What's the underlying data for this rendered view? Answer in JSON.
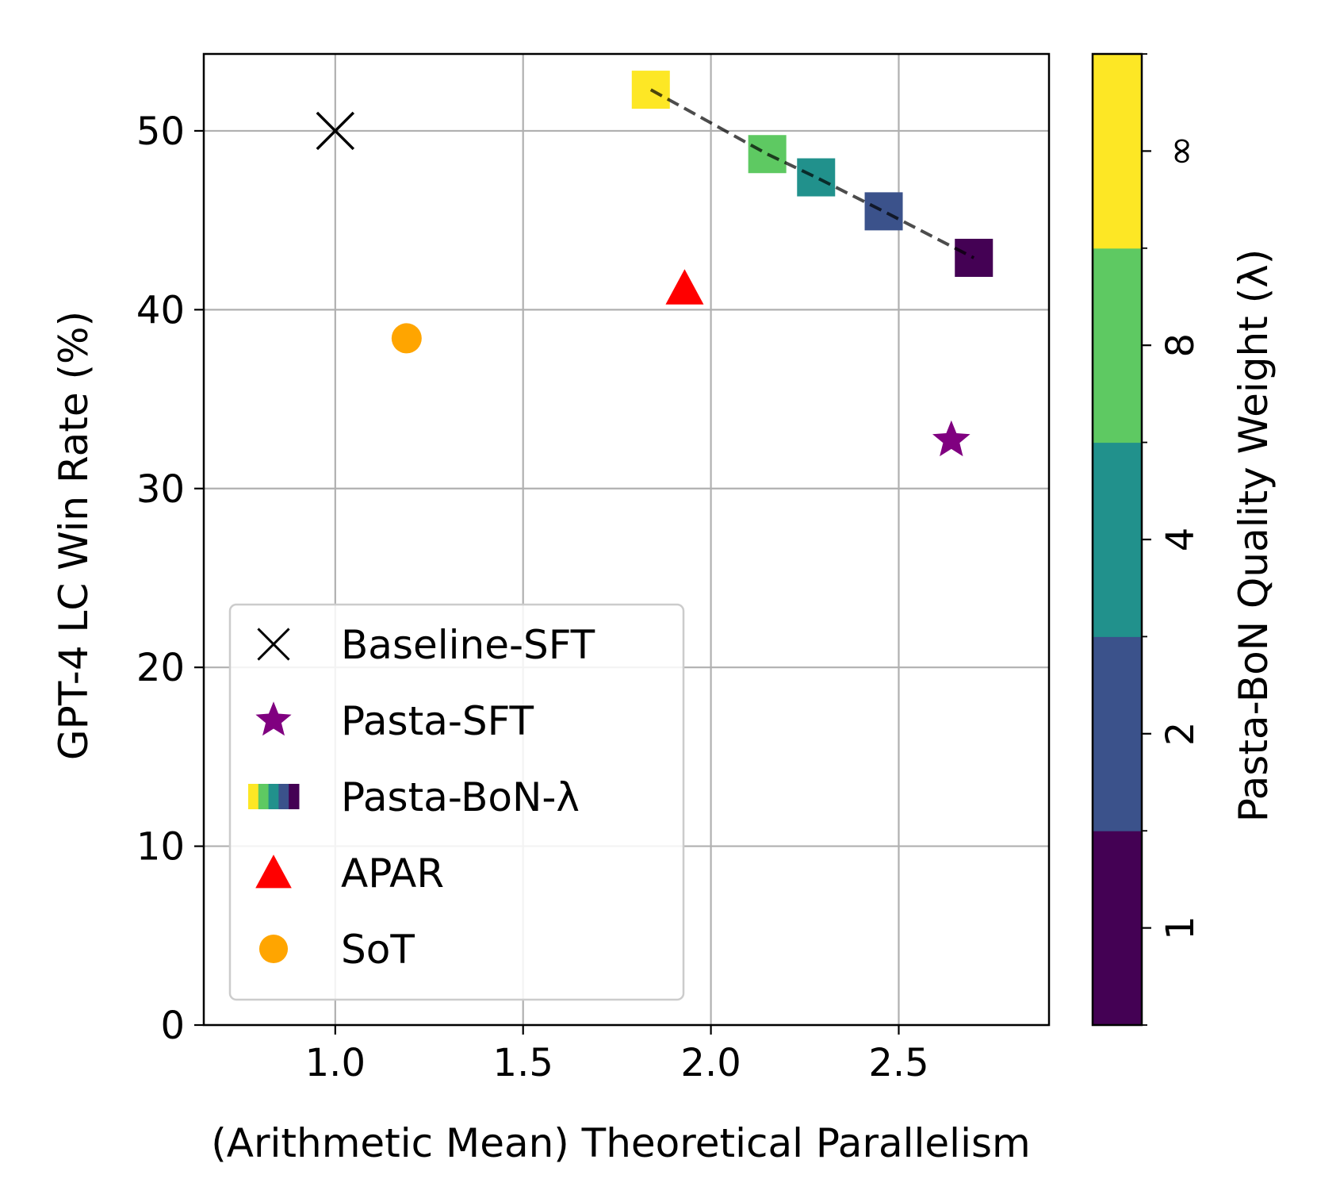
{
  "chart_data": {
    "type": "scatter",
    "xlabel": "(Arithmetic Mean) Theoretical Parallelism",
    "ylabel": "GPT-4 LC Win Rate (%)",
    "xlim": [
      0.65,
      2.9
    ],
    "ylim": [
      0,
      54.3
    ],
    "x_ticks": [
      1.0,
      1.5,
      2.0,
      2.5
    ],
    "x_tick_labels": [
      "1.0",
      "1.5",
      "2.0",
      "2.5"
    ],
    "y_ticks": [
      0,
      10,
      20,
      30,
      40,
      50
    ],
    "y_tick_labels": [
      "0",
      "10",
      "20",
      "30",
      "40",
      "50"
    ],
    "grid": true,
    "legend_position": "lower-left",
    "series": [
      {
        "name": "Baseline-SFT",
        "marker": "x",
        "color": "#000000",
        "points": [
          {
            "x": 1.0,
            "y": 50.0
          }
        ]
      },
      {
        "name": "Pasta-SFT",
        "marker": "star",
        "color": "#800080",
        "points": [
          {
            "x": 2.64,
            "y": 32.7
          }
        ]
      },
      {
        "name": "Pasta-BoN-λ",
        "marker": "square",
        "colormap": "viridis",
        "connected": true,
        "line_style": "dashed",
        "points": [
          {
            "x": 1.84,
            "y": 52.3,
            "lambda": "∞",
            "color": "#fde725"
          },
          {
            "x": 2.15,
            "y": 48.7,
            "lambda": "8",
            "color": "#5ec962"
          },
          {
            "x": 2.28,
            "y": 47.4,
            "lambda": "4",
            "color": "#21918c"
          },
          {
            "x": 2.46,
            "y": 45.5,
            "lambda": "2",
            "color": "#3b528b"
          },
          {
            "x": 2.7,
            "y": 42.9,
            "lambda": "1",
            "color": "#440154"
          }
        ]
      },
      {
        "name": "APAR",
        "marker": "triangle",
        "color": "#ff0000",
        "points": [
          {
            "x": 1.93,
            "y": 41.2
          }
        ]
      },
      {
        "name": "SoT",
        "marker": "circle",
        "color": "#ffa500",
        "points": [
          {
            "x": 1.19,
            "y": 38.4
          }
        ]
      }
    ],
    "colorbar": {
      "label": "Pasta-BoN Quality Weight (λ)",
      "levels": [
        {
          "label": "1",
          "color": "#440154"
        },
        {
          "label": "2",
          "color": "#3b528b"
        },
        {
          "label": "4",
          "color": "#21918c"
        },
        {
          "label": "8",
          "color": "#5ec962"
        },
        {
          "label": "∞",
          "color": "#fde725"
        }
      ]
    }
  }
}
